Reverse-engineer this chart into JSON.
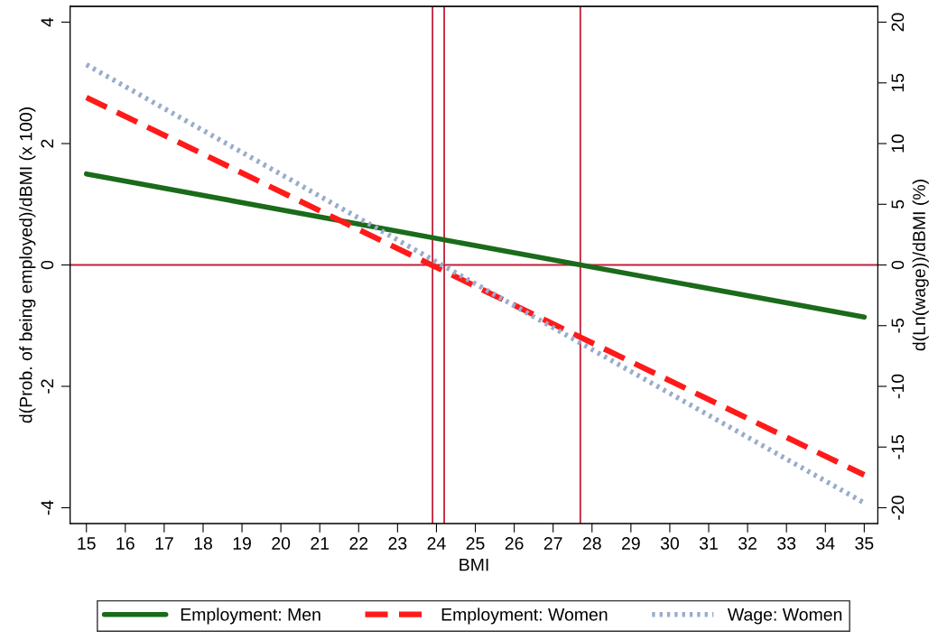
{
  "chart_data": {
    "type": "line",
    "xlabel": "BMI",
    "ylabel": "d(Prob. of being employed)/dBMI (x 100)",
    "y2label": "d(Ln(wage))/dBMI (%)",
    "x": [
      15,
      35
    ],
    "series": [
      {
        "name": "Employment: Men",
        "color": "#1a6b1a",
        "values": [
          1.5,
          -0.86
        ],
        "line_style": "solid"
      },
      {
        "name": "Employment: Women",
        "color": "#ff1a1a",
        "values": [
          2.76,
          -3.46
        ],
        "line_style": "dashed"
      },
      {
        "name": "Wage: Women",
        "color": "#9aaccc",
        "values": [
          16.5,
          -19.6
        ],
        "line_style": "dotted",
        "axis": "y2"
      }
    ],
    "xlim": [
      14.58,
      35.35
    ],
    "xticks": [
      15,
      16,
      17,
      18,
      19,
      20,
      21,
      22,
      23,
      24,
      25,
      26,
      27,
      28,
      29,
      30,
      31,
      32,
      33,
      34,
      35
    ],
    "ylim": [
      -4.26,
      4.26
    ],
    "yticks": [
      -4,
      -2,
      0,
      2,
      4
    ],
    "y2lim": [
      -21.3,
      21.3
    ],
    "y2ticks": [
      -20,
      -15,
      -10,
      -5,
      0,
      5,
      10,
      15,
      20
    ],
    "ref_lines": [
      {
        "axis": "y",
        "value": 0,
        "color": "#c0203a"
      },
      {
        "axis": "x",
        "value": 23.9,
        "color": "#c0203a"
      },
      {
        "axis": "x",
        "value": 24.2,
        "color": "#c0203a"
      },
      {
        "axis": "x",
        "value": 27.7,
        "color": "#c0203a"
      }
    ],
    "grid": false,
    "legend": "bottom"
  }
}
